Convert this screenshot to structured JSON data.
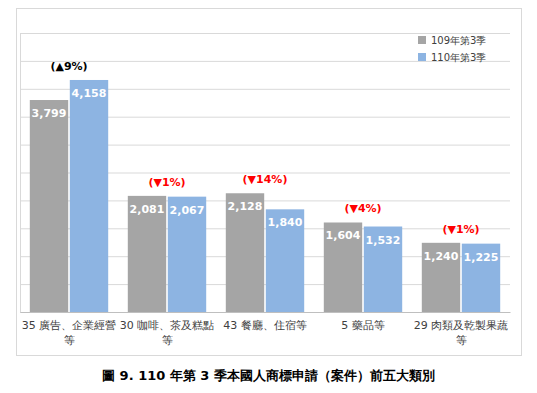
{
  "chart_data": {
    "type": "bar",
    "title": "圖 9. 110 年第 3 季本國人商標申請（案件）前五大類別",
    "categories": [
      "35 廣告、企業經營等",
      "30 咖啡、茶及糕點等",
      "43 餐廳、住宿等",
      "5 藥品等",
      "29 肉類及乾製果蔬等"
    ],
    "series": [
      {
        "name": "109年第3季",
        "color": "#a5a5a5",
        "values": [
          3799,
          2081,
          2128,
          1604,
          1240
        ],
        "value_labels": [
          "3,799",
          "2,081",
          "2,128",
          "1,604",
          "1,240"
        ]
      },
      {
        "name": "110年第3季",
        "color": "#8db4e2",
        "values": [
          4158,
          2067,
          1840,
          1532,
          1225
        ],
        "value_labels": [
          "4,158",
          "2,067",
          "1,840",
          "1,532",
          "1,225"
        ]
      }
    ],
    "annotations": [
      {
        "text": "(▲9%)",
        "color": "#000000"
      },
      {
        "text": "(▼1%)",
        "color": "#ff0000"
      },
      {
        "text": "(▼14%)",
        "color": "#ff0000"
      },
      {
        "text": "(▼4%)",
        "color": "#ff0000"
      },
      {
        "text": "(▼1%)",
        "color": "#ff0000"
      }
    ],
    "ylim": [
      0,
      5000
    ],
    "yticks": [
      0,
      500,
      1000,
      1500,
      2000,
      2500,
      3000,
      3500,
      4000,
      4500,
      5000
    ],
    "grid": true,
    "tick_labels": "x",
    "legend": "upper right",
    "data_labels": true
  }
}
